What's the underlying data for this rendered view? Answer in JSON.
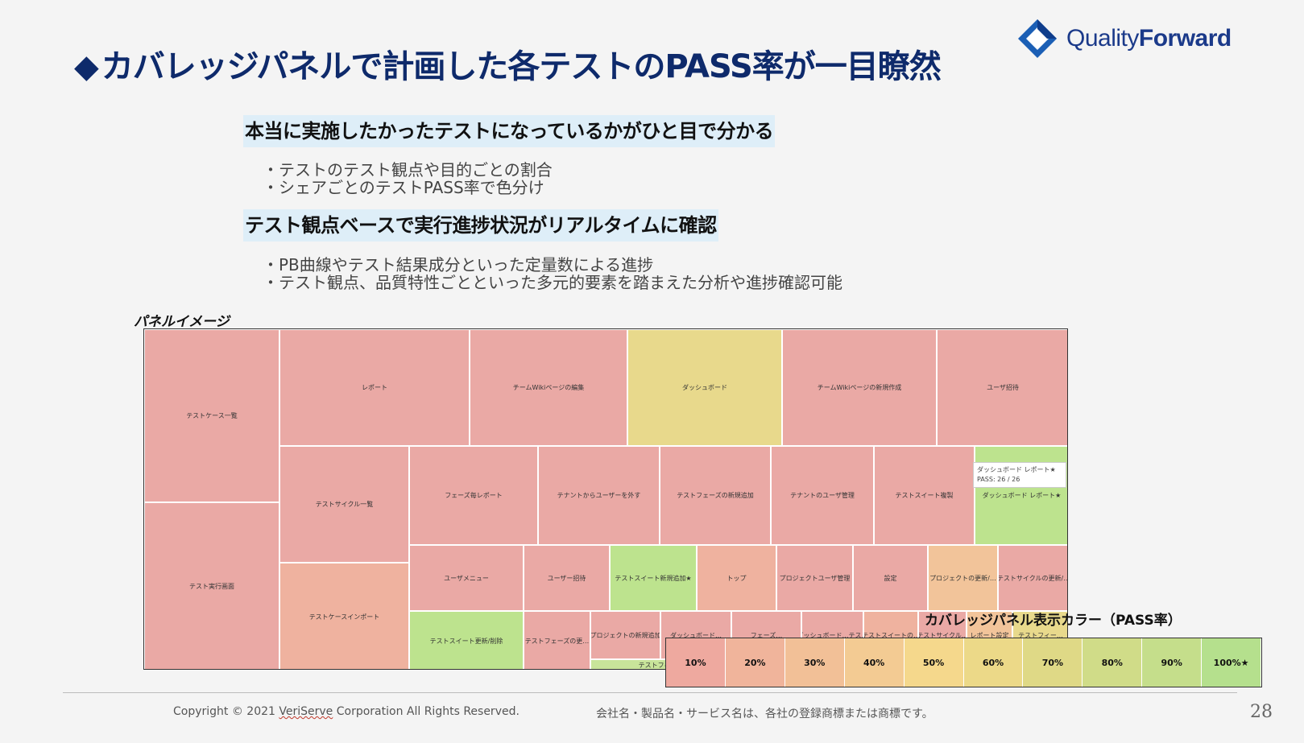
{
  "title": "カバレッジパネルで計画した各テストのPASS率が一目瞭然",
  "title_marker": "◆",
  "logo": {
    "text_light": "Quality",
    "text_bold": "Forward"
  },
  "section1": {
    "heading": "本当に実施したかったテストになっているかがひと目で分かる",
    "bullets": [
      "・テストのテスト観点や目的ごとの割合",
      "・シェアごとのテストPASS率で色分け"
    ]
  },
  "section2": {
    "heading": "テスト観点ベースで実行進捗状況がリアルタイムに確認",
    "bullets": [
      "・PB曲線やテスト結果成分といった定量数による進捗",
      "・テスト観点、品質特性ごとといった多元的要素を踏まえた分析や進捗確認可能"
    ]
  },
  "panel_caption": "パネルイメージ",
  "colors": {
    "red": "#eaa9a5",
    "salmon": "#efb29f",
    "orange": "#f2c49a",
    "yellow": "#e8d98c",
    "green": "#bde38e",
    "lightgreen": "#c8e49a"
  },
  "treemap_cells": [
    {
      "label": "テストケース一覧",
      "color": "red"
    },
    {
      "label": "テスト実行画面",
      "color": "red"
    },
    {
      "label": "レポート",
      "color": "red"
    },
    {
      "label": "チームWikiページの編集",
      "color": "red"
    },
    {
      "label": "ダッシュボード",
      "color": "yellow"
    },
    {
      "label": "チームWikiページの新規作成",
      "color": "red"
    },
    {
      "label": "ユーザ招待",
      "color": "red"
    },
    {
      "label": "テストサイクル一覧",
      "color": "red"
    },
    {
      "label": "テストケースインポート",
      "color": "salmon"
    },
    {
      "label": "フェーズ毎レポート",
      "color": "red"
    },
    {
      "label": "テナントからユーザーを外す",
      "color": "red"
    },
    {
      "label": "テストフェーズの新規追加",
      "color": "red"
    },
    {
      "label": "テナントのユーザ管理",
      "color": "red"
    },
    {
      "label": "テストスイート複製",
      "color": "red"
    },
    {
      "label": "ダッシュボード レポート★",
      "color": "green"
    },
    {
      "label": "ユーザメニュー",
      "color": "red"
    },
    {
      "label": "ユーザー招待",
      "color": "red"
    },
    {
      "label": "テストスイート新規追加★",
      "color": "green"
    },
    {
      "label": "トップ",
      "color": "salmon"
    },
    {
      "label": "プロジェクトユーザ管理",
      "color": "red"
    },
    {
      "label": "設定",
      "color": "red"
    },
    {
      "label": "プロジェクトの更新/…",
      "color": "orange"
    },
    {
      "label": "テストサイクルの更新/…",
      "color": "red"
    },
    {
      "label": "テストスイート更新/削除",
      "color": "green"
    },
    {
      "label": "テストフェーズの更…",
      "color": "red"
    },
    {
      "label": "プロジェクトの新規追加",
      "color": "red"
    },
    {
      "label": "ダッシュボード…",
      "color": "red"
    },
    {
      "label": "フェーズ…",
      "color": "red"
    },
    {
      "label": "ダッシュボード…テス…",
      "color": "red"
    },
    {
      "label": "テストスイートの…",
      "color": "salmon"
    },
    {
      "label": "テストサイクル…",
      "color": "red"
    },
    {
      "label": "レポート設定",
      "color": "orange"
    },
    {
      "label": "テストフィー…",
      "color": "yellow"
    },
    {
      "label": "テストフィー…",
      "color": "lightgreen"
    },
    {
      "label": "チームWiki…",
      "color": "red"
    }
  ],
  "tooltip": {
    "title": "ダッシュボード レポート★",
    "value": "PASS: 26 / 26"
  },
  "legend": {
    "title": "カバレッジパネル表示カラー（PASS率）",
    "items": [
      {
        "label": "10%",
        "color": "#eea99f"
      },
      {
        "label": "20%",
        "color": "#f0b49b"
      },
      {
        "label": "30%",
        "color": "#f2c097"
      },
      {
        "label": "40%",
        "color": "#f3cb93"
      },
      {
        "label": "50%",
        "color": "#f5d88c"
      },
      {
        "label": "60%",
        "color": "#ecd988"
      },
      {
        "label": "70%",
        "color": "#dfd986"
      },
      {
        "label": "80%",
        "color": "#d0dc88"
      },
      {
        "label": "90%",
        "color": "#c5de8b"
      },
      {
        "label": "100%★",
        "color": "#b5e08d"
      }
    ]
  },
  "footer": {
    "copyright_prefix": "Copyright © 2021 ",
    "copyright_company": "VeriServe",
    "copyright_suffix": " Corporation All Rights Reserved.",
    "trademark": "会社名・製品名・サービス名は、各社の登録商標または商標です。",
    "page_number": "28"
  }
}
